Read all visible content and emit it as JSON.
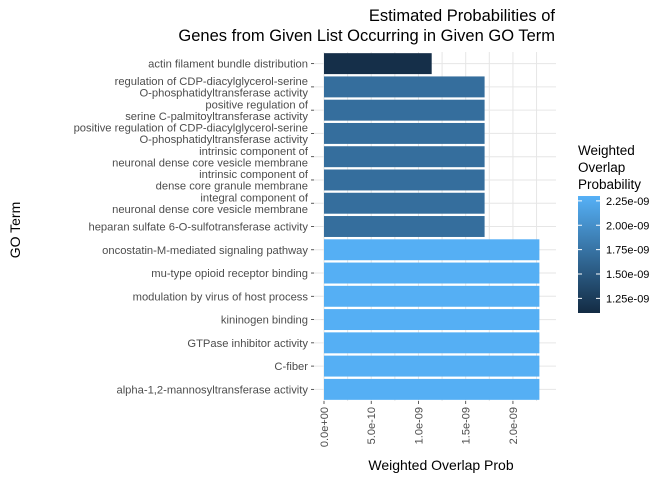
{
  "chart_data": {
    "type": "bar",
    "orientation": "horizontal",
    "title": [
      "Estimated Probabilities of",
      "Genes from Given List Occurring in Given GO Term"
    ],
    "xlabel": "Weighted Overlap Prob",
    "ylabel": "GO Term",
    "xlim": [
      0,
      2.35e-09
    ],
    "xticks": [
      {
        "value": 0,
        "label": "0.0e+00"
      },
      {
        "value": 5e-10,
        "label": "5.0e-10"
      },
      {
        "value": 1e-09,
        "label": "1.0e-09"
      },
      {
        "value": 1.5e-09,
        "label": "1.5e-09"
      },
      {
        "value": 2e-09,
        "label": "2.0e-09"
      }
    ],
    "grid": true,
    "categories": [
      [
        "actin filament bundle distribution"
      ],
      [
        "regulation of CDP-diacylglycerol-serine",
        "O-phosphatidyltransferase activity"
      ],
      [
        "positive regulation of",
        "serine C-palmitoyltransferase activity"
      ],
      [
        "positive regulation of CDP-diacylglycerol-serine",
        "O-phosphatidyltransferase activity"
      ],
      [
        "intrinsic component of",
        "neuronal dense core vesicle membrane"
      ],
      [
        "intrinsic component of",
        "dense core granule membrane"
      ],
      [
        "integral component of",
        "neuronal dense core vesicle membrane"
      ],
      [
        "heparan sulfate 6-O-sulfotransferase activity"
      ],
      [
        "oncostatin-M-mediated signaling pathway"
      ],
      [
        "mu-type opioid receptor binding"
      ],
      [
        "modulation by virus of host process"
      ],
      [
        "kininogen binding"
      ],
      [
        "GTPase inhibitor activity"
      ],
      [
        "C-fiber"
      ],
      [
        "alpha-1,2-mannosyltransferase activity"
      ]
    ],
    "values": [
      1.14e-09,
      1.7e-09,
      1.7e-09,
      1.7e-09,
      1.7e-09,
      1.7e-09,
      1.7e-09,
      1.7e-09,
      2.28e-09,
      2.28e-09,
      2.28e-09,
      2.28e-09,
      2.28e-09,
      2.28e-09,
      2.28e-09
    ],
    "legend": {
      "title": [
        "Weighted",
        "Overlap",
        "Probability"
      ],
      "placement": "right",
      "range": [
        1.1e-09,
        2.3e-09
      ],
      "ticks": [
        {
          "value": 2.25e-09,
          "label": "2.25e-09"
        },
        {
          "value": 2e-09,
          "label": "2.00e-09"
        },
        {
          "value": 1.75e-09,
          "label": "1.75e-09"
        },
        {
          "value": 1.5e-09,
          "label": "1.50e-09"
        },
        {
          "value": 1.25e-09,
          "label": "1.25e-09"
        }
      ],
      "color_low": "#132b43",
      "color_high": "#56b1f7"
    }
  }
}
